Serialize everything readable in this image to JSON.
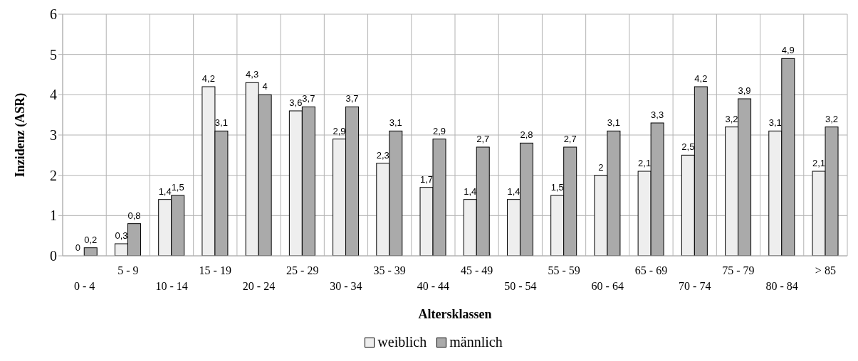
{
  "chart_data": {
    "type": "bar",
    "xlabel": "Altersklassen",
    "ylabel": "Inzidenz (ASR)",
    "categories": [
      "0 - 4",
      "5 - 9",
      "10 - 14",
      "15 - 19",
      "20 - 24",
      "25 - 29",
      "30 - 34",
      "35 - 39",
      "40 - 44",
      "45 - 49",
      "50 - 54",
      "55 - 59",
      "60 - 64",
      "65 - 69",
      "70 - 74",
      "75 - 79",
      "80 - 84",
      "> 85"
    ],
    "series": [
      {
        "name": "weiblich",
        "color": "#eeeeee",
        "values": [
          0,
          0.3,
          1.4,
          4.2,
          4.3,
          3.6,
          2.9,
          2.3,
          1.7,
          1.4,
          1.4,
          1.5,
          2,
          2.1,
          2.5,
          3.2,
          3.1,
          2.1
        ],
        "value_labels": [
          "0",
          "0,3",
          "1,4",
          "4,2",
          "4,3",
          "3,6",
          "2,9",
          "2,3",
          "1,7",
          "1,4",
          "1,4",
          "1,5",
          "2",
          "2,1",
          "2,5",
          "3,2",
          "3,1",
          "2,1"
        ]
      },
      {
        "name": "männlich",
        "color": "#aaaaaa",
        "values": [
          0.2,
          0.8,
          1.5,
          3.1,
          4,
          3.7,
          3.7,
          3.1,
          2.9,
          2.7,
          2.8,
          2.7,
          3.1,
          3.3,
          4.2,
          3.9,
          4.9,
          3.2
        ],
        "value_labels": [
          "0,2",
          "0,8",
          "1,5",
          "3,1",
          "4",
          "3,7",
          "3,7",
          "3,1",
          "2,9",
          "2,7",
          "2,8",
          "2,7",
          "3,1",
          "3,3",
          "4,2",
          "3,9",
          "4,9",
          "3,2"
        ]
      }
    ],
    "ylim": [
      0,
      6
    ],
    "yticks": [
      0,
      1,
      2,
      3,
      4,
      5,
      6
    ],
    "grid": true,
    "legend": "bottom"
  }
}
